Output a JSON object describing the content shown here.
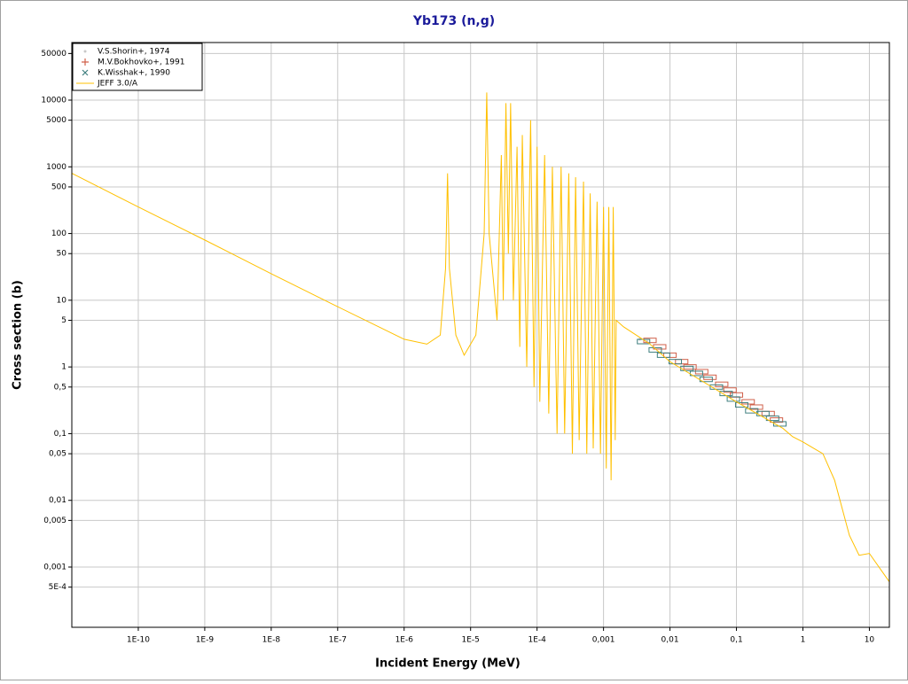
{
  "chart_data": {
    "type": "line",
    "title": "Yb173 (n,g)",
    "x_label": "Incident Energy (MeV)",
    "y_label": "Cross section (b)",
    "log_x": true,
    "log_y": true,
    "grid": true,
    "legend": "top-left",
    "xlim": [
      1e-11,
      20
    ],
    "ylim": [
      0.000125,
      73000
    ],
    "xticks": [
      {
        "value": 1e-10,
        "label": "1E-10"
      },
      {
        "value": 1e-09,
        "label": "1E-9"
      },
      {
        "value": 1e-08,
        "label": "1E-8"
      },
      {
        "value": 1e-07,
        "label": "1E-7"
      },
      {
        "value": 1e-06,
        "label": "1E-6"
      },
      {
        "value": 1e-05,
        "label": "1E-5"
      },
      {
        "value": 0.0001,
        "label": "1E-4"
      },
      {
        "value": 0.001,
        "label": "0,001"
      },
      {
        "value": 0.01,
        "label": "0,01"
      },
      {
        "value": 0.1,
        "label": "0,1"
      },
      1,
      10
    ],
    "yticks": [
      50000,
      10000,
      5000,
      1000,
      500,
      100,
      50,
      10,
      5,
      1,
      {
        "value": 0.5,
        "label": "0,5"
      },
      {
        "value": 0.1,
        "label": "0,1"
      },
      {
        "value": 0.05,
        "label": "0,05"
      },
      {
        "value": 0.01,
        "label": "0,01"
      },
      {
        "value": 0.005,
        "label": "0,005"
      },
      {
        "value": 0.001,
        "label": "0,001"
      },
      {
        "value": 0.0005,
        "label": "5E-4"
      }
    ],
    "series": [
      {
        "name": "V.S.Shorin+, 1974",
        "color": "#c8c8c8",
        "marker": "dot",
        "x": [
          0.0035,
          0.0045
        ],
        "values": [
          2.6,
          2.4
        ]
      },
      {
        "name": "M.V.Bokhovko+, 1991",
        "color": "#d0604a",
        "marker": "plus",
        "x": [
          0.005,
          0.007,
          0.01,
          0.015,
          0.02,
          0.03,
          0.04,
          0.06,
          0.08,
          0.1,
          0.15,
          0.2,
          0.3,
          0.4
        ],
        "values": [
          2.5,
          2.0,
          1.5,
          1.2,
          1.0,
          0.85,
          0.7,
          0.55,
          0.45,
          0.38,
          0.3,
          0.25,
          0.2,
          0.16
        ]
      },
      {
        "name": "K.Wisshak+, 1990",
        "color": "#3f7f7f",
        "marker": "cross",
        "x": [
          0.004,
          0.006,
          0.008,
          0.012,
          0.018,
          0.025,
          0.035,
          0.05,
          0.07,
          0.09,
          0.12,
          0.17,
          0.25,
          0.35,
          0.45
        ],
        "values": [
          2.4,
          1.8,
          1.5,
          1.2,
          0.95,
          0.8,
          0.65,
          0.5,
          0.4,
          0.33,
          0.27,
          0.22,
          0.2,
          0.17,
          0.14
        ]
      },
      {
        "name": "JEFF 3.0/A",
        "color": "#ffc000",
        "marker": "line",
        "x": [
          1e-11,
          1e-10,
          1e-09,
          1e-08,
          1e-07,
          1e-06,
          2.2e-06,
          3.5e-06,
          4.2e-06,
          4.5e-06,
          4.8e-06,
          6e-06,
          8e-06,
          1.2e-05,
          1.6e-05,
          1.75e-05,
          1.9e-05,
          2.5e-05,
          2.9e-05,
          3.1e-05,
          3.4e-05,
          3.7e-05,
          4e-05,
          4.4e-05,
          5e-05,
          5.5e-05,
          6e-05,
          7e-05,
          8e-05,
          9e-05,
          0.0001,
          0.00011,
          0.00013,
          0.00015,
          0.00017,
          0.0002,
          0.00023,
          0.00026,
          0.0003,
          0.00034,
          0.00038,
          0.00043,
          0.0005,
          0.00056,
          0.00063,
          0.0007,
          0.0008,
          0.0009,
          0.001,
          0.0011,
          0.0012,
          0.0013,
          0.0014,
          0.0015,
          0.00155,
          0.002,
          0.005,
          0.01,
          0.1,
          0.5,
          0.7,
          1,
          2,
          3,
          5,
          7,
          10,
          20
        ],
        "values": [
          800,
          250,
          80,
          25,
          8,
          2.6,
          2.2,
          3,
          30,
          800,
          30,
          3,
          1.5,
          3,
          100,
          13000,
          100,
          5,
          1500,
          10,
          9000,
          50,
          9000,
          10,
          2000,
          2,
          3000,
          1,
          5000,
          0.5,
          2000,
          0.3,
          1500,
          0.2,
          1000,
          0.1,
          1000,
          0.1,
          800,
          0.05,
          700,
          0.08,
          600,
          0.05,
          400,
          0.06,
          300,
          0.05,
          250,
          0.03,
          250,
          0.02,
          250,
          0.08,
          5,
          4,
          2.2,
          1.2,
          0.3,
          0.12,
          0.09,
          0.075,
          0.05,
          0.02,
          0.003,
          0.0015,
          0.0016,
          0.0006
        ]
      }
    ]
  }
}
